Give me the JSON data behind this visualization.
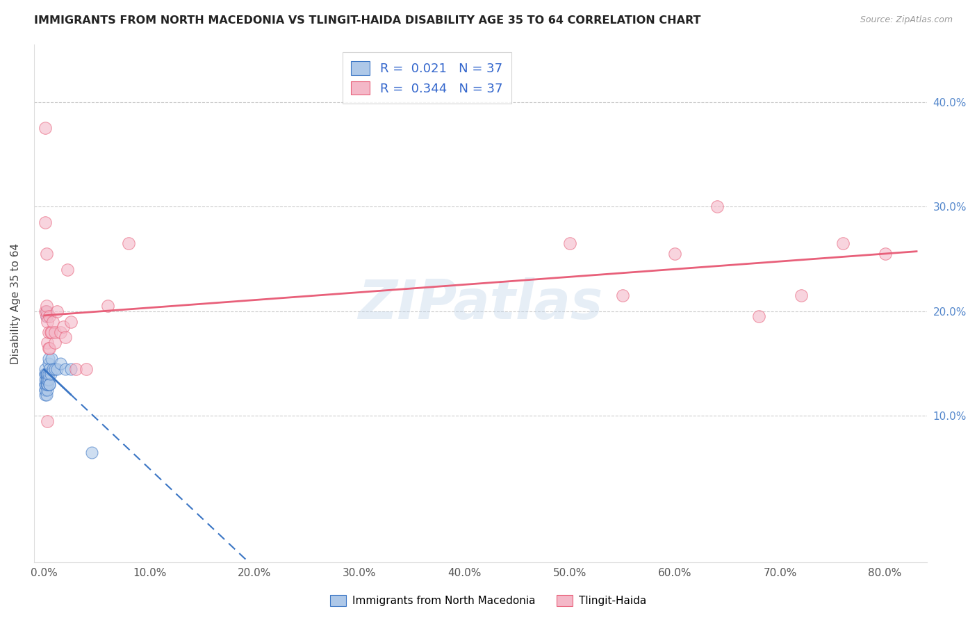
{
  "title": "IMMIGRANTS FROM NORTH MACEDONIA VS TLINGIT-HAIDA DISABILITY AGE 35 TO 64 CORRELATION CHART",
  "source": "Source: ZipAtlas.com",
  "xlabel_ticks": [
    "0.0%",
    "10.0%",
    "20.0%",
    "30.0%",
    "40.0%",
    "50.0%",
    "60.0%",
    "70.0%",
    "80.0%"
  ],
  "xlabel_tick_vals": [
    0.0,
    0.1,
    0.2,
    0.3,
    0.4,
    0.5,
    0.6,
    0.7,
    0.8
  ],
  "xlim": [
    -0.01,
    0.84
  ],
  "ylim": [
    -0.04,
    0.455
  ],
  "right_ytick_vals": [
    0.1,
    0.2,
    0.3,
    0.4
  ],
  "right_ytick_labels": [
    "10.0%",
    "20.0%",
    "30.0%",
    "40.0%"
  ],
  "r1": 0.021,
  "r2": 0.344,
  "n1": 37,
  "n2": 37,
  "color_blue": "#aec8e8",
  "color_pink": "#f4b8c8",
  "trend_color_blue": "#3a75c4",
  "trend_color_pink": "#e8607a",
  "watermark": "ZIPatlas",
  "ylabel": "Disability Age 35 to 64",
  "legend_label1": "Immigrants from North Macedonia",
  "legend_label2": "Tlingit-Haida",
  "blue_x": [
    0.001,
    0.001,
    0.001,
    0.001,
    0.001,
    0.001,
    0.001,
    0.001,
    0.001,
    0.002,
    0.002,
    0.002,
    0.002,
    0.002,
    0.002,
    0.002,
    0.003,
    0.003,
    0.003,
    0.003,
    0.003,
    0.004,
    0.004,
    0.004,
    0.004,
    0.005,
    0.005,
    0.005,
    0.006,
    0.007,
    0.008,
    0.01,
    0.012,
    0.015,
    0.02,
    0.025,
    0.045
  ],
  "blue_y": [
    0.12,
    0.125,
    0.125,
    0.13,
    0.13,
    0.135,
    0.14,
    0.14,
    0.145,
    0.12,
    0.13,
    0.135,
    0.14,
    0.14,
    0.195,
    0.2,
    0.125,
    0.13,
    0.13,
    0.135,
    0.14,
    0.135,
    0.14,
    0.15,
    0.155,
    0.13,
    0.13,
    0.145,
    0.14,
    0.155,
    0.145,
    0.145,
    0.145,
    0.15,
    0.145,
    0.145,
    0.065
  ],
  "pink_x": [
    0.001,
    0.001,
    0.002,
    0.002,
    0.002,
    0.003,
    0.003,
    0.004,
    0.004,
    0.005,
    0.005,
    0.006,
    0.007,
    0.008,
    0.01,
    0.01,
    0.012,
    0.015,
    0.018,
    0.02,
    0.022,
    0.025,
    0.03,
    0.04,
    0.06,
    0.08,
    0.5,
    0.55,
    0.6,
    0.64,
    0.68,
    0.72,
    0.76,
    0.8,
    0.001,
    0.002,
    0.003
  ],
  "pink_y": [
    0.375,
    0.2,
    0.195,
    0.2,
    0.205,
    0.17,
    0.19,
    0.165,
    0.18,
    0.165,
    0.195,
    0.18,
    0.18,
    0.19,
    0.17,
    0.18,
    0.2,
    0.18,
    0.185,
    0.175,
    0.24,
    0.19,
    0.145,
    0.145,
    0.205,
    0.265,
    0.265,
    0.215,
    0.255,
    0.3,
    0.195,
    0.215,
    0.265,
    0.255,
    0.285,
    0.255,
    0.095
  ]
}
